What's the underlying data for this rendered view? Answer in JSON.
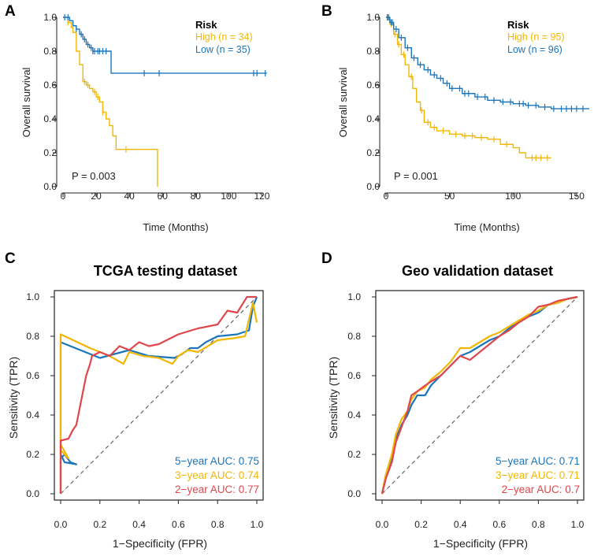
{
  "colors": {
    "high": "#F2B705",
    "low": "#1B75BB",
    "y5": "#1B75BB",
    "y3": "#F2B705",
    "y2": "#E0474C",
    "axis": "#222222",
    "ref": "#666666"
  },
  "chart_data": [
    {
      "panel": "A",
      "type": "line",
      "subtype": "kaplan-meier",
      "title": "",
      "xlabel": "Time (Months)",
      "ylabel": "Overall survival",
      "xlim": [
        0,
        125
      ],
      "ylim": [
        0,
        1
      ],
      "xticks": [
        "0",
        "20",
        "40",
        "60",
        "80",
        "100",
        "120"
      ],
      "yticks": [
        "0.0",
        "0.2",
        "0.4",
        "0.6",
        "0.8",
        "1.0"
      ],
      "legend_title": "Risk",
      "pvalue": "P = 0.003",
      "series": [
        {
          "name": "High",
          "label": "High (n = 34)",
          "color": "#F2B705",
          "x": [
            0,
            3,
            5,
            6,
            8,
            10,
            12,
            14,
            16,
            18,
            20,
            22,
            24,
            26,
            28,
            30,
            32,
            44,
            57,
            57
          ],
          "y": [
            1,
            0.97,
            0.94,
            0.91,
            0.8,
            0.72,
            0.62,
            0.6,
            0.58,
            0.56,
            0.53,
            0.5,
            0.44,
            0.4,
            0.36,
            0.3,
            0.22,
            0.22,
            0.22,
            0
          ],
          "censor_x": [
            3,
            13,
            15,
            19,
            21,
            24,
            38
          ]
        },
        {
          "name": "Low",
          "label": "Low (n = 35)",
          "color": "#1B75BB",
          "x": [
            0,
            4,
            6,
            8,
            10,
            12,
            14,
            16,
            18,
            20,
            29,
            29,
            123
          ],
          "y": [
            1,
            0.98,
            0.95,
            0.93,
            0.9,
            0.87,
            0.84,
            0.82,
            0.8,
            0.8,
            0.8,
            0.67,
            0.67
          ],
          "censor_x": [
            1,
            3,
            8,
            11,
            13,
            15,
            17,
            18,
            19,
            21,
            22,
            24,
            26,
            49,
            58,
            115,
            117,
            122
          ]
        }
      ]
    },
    {
      "panel": "B",
      "type": "line",
      "subtype": "kaplan-meier",
      "title": "",
      "xlabel": "Time (Months)",
      "ylabel": "Overall survival",
      "xlim": [
        0,
        160
      ],
      "ylim": [
        0,
        1
      ],
      "xticks": [
        "0",
        "50",
        "100",
        "150"
      ],
      "yticks": [
        "0.0",
        "0.2",
        "0.4",
        "0.6",
        "0.8",
        "1.0"
      ],
      "legend_title": "Risk",
      "pvalue": "P = 0.001",
      "series": [
        {
          "name": "High",
          "label": "High (n = 95)",
          "color": "#F2B705",
          "x": [
            0,
            3,
            6,
            9,
            12,
            15,
            18,
            21,
            24,
            27,
            30,
            35,
            40,
            50,
            60,
            70,
            80,
            90,
            100,
            105,
            110,
            120,
            130
          ],
          "y": [
            1,
            0.96,
            0.9,
            0.84,
            0.78,
            0.72,
            0.65,
            0.58,
            0.5,
            0.45,
            0.38,
            0.35,
            0.33,
            0.31,
            0.3,
            0.29,
            0.28,
            0.25,
            0.23,
            0.2,
            0.17,
            0.17,
            0.17
          ],
          "censor_x": [
            2,
            4,
            7,
            10,
            14,
            20,
            28,
            33,
            38,
            45,
            55,
            62,
            68,
            75,
            85,
            95,
            115,
            118,
            122,
            127
          ]
        },
        {
          "name": "Low",
          "label": "Low (n = 96)",
          "color": "#1B75BB",
          "x": [
            0,
            3,
            6,
            10,
            15,
            20,
            25,
            30,
            35,
            40,
            45,
            50,
            60,
            70,
            80,
            90,
            100,
            110,
            120,
            130,
            160
          ],
          "y": [
            1,
            0.97,
            0.93,
            0.88,
            0.82,
            0.76,
            0.72,
            0.69,
            0.66,
            0.64,
            0.61,
            0.58,
            0.55,
            0.53,
            0.51,
            0.5,
            0.49,
            0.48,
            0.47,
            0.46,
            0.46
          ],
          "censor_x": [
            1,
            2,
            4,
            5,
            8,
            12,
            17,
            22,
            27,
            33,
            38,
            43,
            48,
            52,
            58,
            62,
            65,
            72,
            78,
            85,
            92,
            98,
            105,
            108,
            112,
            118,
            125,
            132,
            138,
            142,
            146,
            150,
            155
          ]
        }
      ]
    },
    {
      "panel": "C",
      "type": "line",
      "subtype": "roc",
      "title": "TCGA testing dataset",
      "xlabel": "1−Specificity (FPR)",
      "ylabel": "Sensitivity (TPR)",
      "xlim": [
        0,
        1
      ],
      "ylim": [
        0,
        1
      ],
      "xticks": [
        "0.0",
        "0.2",
        "0.4",
        "0.6",
        "0.8",
        "1.0"
      ],
      "yticks": [
        "0.0",
        "0.2",
        "0.4",
        "0.6",
        "0.8",
        "1.0"
      ],
      "series": [
        {
          "name": "5-year",
          "label": "5−year AUC: 0.75",
          "color": "#1B75BB",
          "x": [
            0,
            0,
            0.02,
            0.05,
            0.08,
            0.02,
            0.0,
            0.0,
            0.2,
            0.35,
            0.45,
            0.58,
            0.62,
            0.66,
            0.7,
            0.74,
            0.8,
            0.9,
            0.96,
            0.98,
            1.0
          ],
          "y": [
            0,
            0.18,
            0.2,
            0.16,
            0.15,
            0.16,
            0.2,
            0.77,
            0.69,
            0.73,
            0.7,
            0.69,
            0.71,
            0.74,
            0.74,
            0.77,
            0.8,
            0.81,
            0.83,
            0.95,
            1.0
          ]
        },
        {
          "name": "3-year",
          "label": "3−year AUC: 0.74",
          "color": "#F2B705",
          "x": [
            0,
            0,
            0.04,
            0.0,
            0.0,
            0.15,
            0.25,
            0.32,
            0.35,
            0.42,
            0.5,
            0.57,
            0.6,
            0.65,
            0.7,
            0.8,
            0.88,
            0.94,
            0.98,
            1.0
          ],
          "y": [
            0,
            0.22,
            0.18,
            0.25,
            0.81,
            0.74,
            0.7,
            0.66,
            0.72,
            0.7,
            0.69,
            0.66,
            0.7,
            0.73,
            0.72,
            0.78,
            0.79,
            0.8,
            0.97,
            0.87
          ]
        },
        {
          "name": "2-year",
          "label": "2−year AUC: 0.77",
          "color": "#E0474C",
          "x": [
            0,
            0,
            0.04,
            0.06,
            0.08,
            0.1,
            0.11,
            0.12,
            0.13,
            0.15,
            0.16,
            0.2,
            0.25,
            0.3,
            0.35,
            0.4,
            0.45,
            0.5,
            0.6,
            0.7,
            0.8,
            0.85,
            0.9,
            0.95,
            1.0
          ],
          "y": [
            0,
            0.27,
            0.28,
            0.32,
            0.35,
            0.45,
            0.5,
            0.55,
            0.6,
            0.66,
            0.7,
            0.72,
            0.7,
            0.75,
            0.73,
            0.77,
            0.75,
            0.76,
            0.81,
            0.84,
            0.86,
            0.93,
            0.92,
            1.0,
            1.0
          ]
        }
      ]
    },
    {
      "panel": "D",
      "type": "line",
      "subtype": "roc",
      "title": "Geo validation dataset",
      "xlabel": "1−Specificity (FPR)",
      "ylabel": "Sensitivity (TPR)",
      "xlim": [
        0,
        1
      ],
      "ylim": [
        0,
        1
      ],
      "xticks": [
        "0.0",
        "0.2",
        "0.4",
        "0.6",
        "0.8",
        "1.0"
      ],
      "yticks": [
        "0.0",
        "0.2",
        "0.4",
        "0.6",
        "0.8",
        "1.0"
      ],
      "series": [
        {
          "name": "5-year",
          "label": "5−year AUC: 0.71",
          "color": "#1B75BB",
          "x": [
            0,
            0.02,
            0.05,
            0.07,
            0.1,
            0.13,
            0.15,
            0.18,
            0.22,
            0.25,
            0.3,
            0.35,
            0.4,
            0.45,
            0.5,
            0.55,
            0.6,
            0.65,
            0.7,
            0.75,
            0.8,
            0.85,
            0.9,
            0.95,
            1.0
          ],
          "y": [
            0,
            0.1,
            0.18,
            0.28,
            0.35,
            0.4,
            0.45,
            0.5,
            0.5,
            0.55,
            0.6,
            0.65,
            0.7,
            0.72,
            0.75,
            0.78,
            0.8,
            0.84,
            0.88,
            0.9,
            0.92,
            0.96,
            0.97,
            0.99,
            1.0
          ]
        },
        {
          "name": "3-year",
          "label": "3−year AUC: 0.71",
          "color": "#F2B705",
          "x": [
            0,
            0.02,
            0.05,
            0.07,
            0.1,
            0.13,
            0.15,
            0.18,
            0.22,
            0.25,
            0.3,
            0.35,
            0.4,
            0.45,
            0.5,
            0.55,
            0.6,
            0.65,
            0.7,
            0.75,
            0.8,
            0.85,
            0.9,
            0.95,
            1.0
          ],
          "y": [
            0,
            0.1,
            0.2,
            0.3,
            0.38,
            0.42,
            0.48,
            0.52,
            0.54,
            0.58,
            0.62,
            0.67,
            0.74,
            0.74,
            0.77,
            0.8,
            0.82,
            0.85,
            0.88,
            0.91,
            0.93,
            0.96,
            0.97,
            0.99,
            1.0
          ]
        },
        {
          "name": "2-year",
          "label": "2−year AUC: 0.7",
          "color": "#E0474C",
          "x": [
            0,
            0.02,
            0.05,
            0.07,
            0.1,
            0.13,
            0.15,
            0.18,
            0.22,
            0.25,
            0.3,
            0.35,
            0.4,
            0.45,
            0.5,
            0.55,
            0.6,
            0.65,
            0.7,
            0.75,
            0.8,
            0.85,
            0.9,
            0.95,
            1.0
          ],
          "y": [
            0,
            0.08,
            0.16,
            0.26,
            0.34,
            0.42,
            0.5,
            0.52,
            0.55,
            0.57,
            0.6,
            0.65,
            0.7,
            0.68,
            0.72,
            0.76,
            0.8,
            0.83,
            0.87,
            0.9,
            0.95,
            0.96,
            0.98,
            0.99,
            1.0
          ]
        }
      ]
    }
  ]
}
